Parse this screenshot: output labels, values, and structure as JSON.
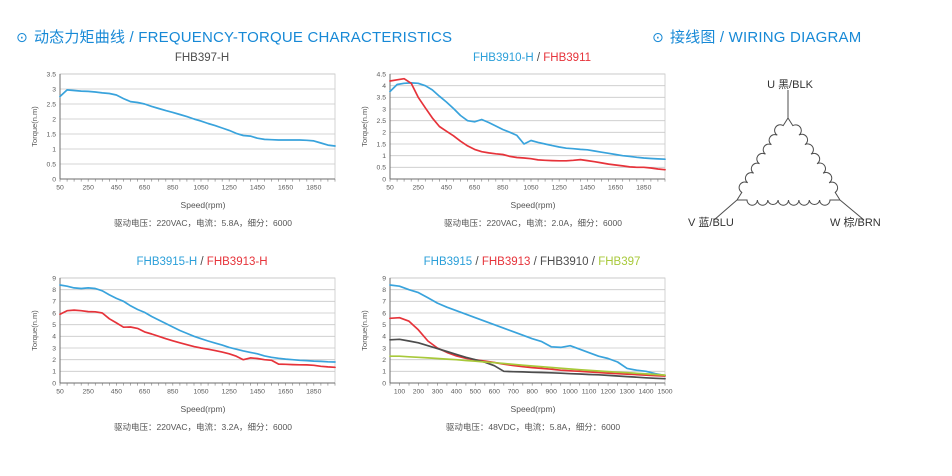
{
  "sections": {
    "charts": {
      "bullet": "⊙",
      "title": "动态力矩曲线 / FREQUENCY-TORQUE CHARACTERISTICS"
    },
    "wiring": {
      "bullet": "⊙",
      "title": "接线图 / WIRING DIAGRAM"
    }
  },
  "colors": {
    "accent_blue": "#1789d6",
    "series_blue": "#39a3dc",
    "series_red": "#e6333a",
    "series_gray": "#4d4d4d",
    "series_green": "#a8c93a"
  },
  "wiring": {
    "terminals": [
      {
        "id": "U",
        "label": "U 黑/BLK"
      },
      {
        "id": "V",
        "label": "V 蓝/BLU"
      },
      {
        "id": "W",
        "label": "W 棕/BRN"
      }
    ]
  },
  "chart_data": [
    {
      "type": "line",
      "title_parts": [
        {
          "text": "FHB397-H",
          "color": "#4d4d4d"
        }
      ],
      "xlabel": "Speed(rpm)",
      "ylabel": "Torque(n.m)",
      "caption": "驱动电压：220VAC，电流：5.8A，细分：6000",
      "xlim": [
        50,
        2000
      ],
      "ylim": [
        0,
        3.5
      ],
      "ytick_step": 0.5,
      "xtick_minor_step": 50,
      "xtick_major": [
        50,
        250,
        450,
        650,
        850,
        1050,
        1250,
        1450,
        1650,
        1850
      ],
      "series": [
        {
          "name": "FHB397-H",
          "color": "#39a3dc",
          "x": [
            50,
            100,
            150,
            200,
            250,
            300,
            350,
            400,
            450,
            500,
            550,
            600,
            650,
            700,
            750,
            800,
            850,
            900,
            950,
            1000,
            1050,
            1100,
            1150,
            1200,
            1250,
            1300,
            1350,
            1400,
            1450,
            1500,
            1550,
            1600,
            1650,
            1700,
            1750,
            1800,
            1850,
            1900,
            1950,
            2000
          ],
          "y": [
            2.75,
            2.97,
            2.95,
            2.93,
            2.92,
            2.9,
            2.87,
            2.85,
            2.8,
            2.68,
            2.58,
            2.55,
            2.5,
            2.42,
            2.35,
            2.28,
            2.22,
            2.15,
            2.08,
            2.0,
            1.93,
            1.85,
            1.78,
            1.7,
            1.62,
            1.52,
            1.45,
            1.43,
            1.36,
            1.32,
            1.31,
            1.3,
            1.3,
            1.3,
            1.3,
            1.29,
            1.27,
            1.2,
            1.13,
            1.1
          ]
        }
      ]
    },
    {
      "type": "line",
      "title_parts": [
        {
          "text": "FHB3910-H",
          "color": "#2b9fd9"
        },
        {
          "text": "FHB3911",
          "color": "#e6333a"
        }
      ],
      "xlabel": "Speed(rpm)",
      "ylabel": "Torque(n.m)",
      "caption": "驱动电压：220VAC，电流：2.0A，细分：6000",
      "xlim": [
        50,
        2000
      ],
      "ylim": [
        0,
        4.5
      ],
      "ytick_step": 0.5,
      "xtick_minor_step": 50,
      "xtick_major": [
        50,
        250,
        450,
        650,
        850,
        1050,
        1250,
        1450,
        1650,
        1850
      ],
      "series": [
        {
          "name": "FHB3910-H",
          "color": "#39a3dc",
          "x": [
            50,
            100,
            150,
            200,
            250,
            300,
            350,
            400,
            450,
            500,
            550,
            600,
            650,
            700,
            750,
            800,
            850,
            900,
            950,
            1000,
            1050,
            1100,
            1150,
            1200,
            1250,
            1300,
            1350,
            1400,
            1450,
            1500,
            1550,
            1600,
            1650,
            1700,
            1750,
            1800,
            1850,
            1900,
            1950,
            2000
          ],
          "y": [
            3.75,
            4.05,
            4.1,
            4.12,
            4.1,
            4.0,
            3.82,
            3.55,
            3.3,
            3.02,
            2.72,
            2.5,
            2.45,
            2.55,
            2.42,
            2.27,
            2.12,
            2.0,
            1.87,
            1.5,
            1.65,
            1.57,
            1.5,
            1.43,
            1.37,
            1.32,
            1.3,
            1.27,
            1.25,
            1.2,
            1.15,
            1.1,
            1.05,
            1.0,
            0.97,
            0.93,
            0.9,
            0.88,
            0.86,
            0.85
          ]
        },
        {
          "name": "FHB3911",
          "color": "#e6333a",
          "x": [
            50,
            100,
            150,
            200,
            250,
            300,
            350,
            400,
            450,
            500,
            550,
            600,
            650,
            700,
            750,
            800,
            850,
            900,
            950,
            1000,
            1050,
            1100,
            1150,
            1200,
            1250,
            1300,
            1350,
            1400,
            1450,
            1500,
            1550,
            1600,
            1650,
            1700,
            1750,
            1800,
            1850,
            1900,
            1950,
            2000
          ],
          "y": [
            4.2,
            4.25,
            4.3,
            4.1,
            3.5,
            3.05,
            2.62,
            2.25,
            2.05,
            1.85,
            1.62,
            1.42,
            1.27,
            1.17,
            1.12,
            1.08,
            1.05,
            0.97,
            0.92,
            0.9,
            0.87,
            0.82,
            0.8,
            0.79,
            0.78,
            0.78,
            0.8,
            0.83,
            0.79,
            0.74,
            0.69,
            0.64,
            0.6,
            0.56,
            0.52,
            0.5,
            0.5,
            0.47,
            0.43,
            0.4
          ]
        }
      ]
    },
    {
      "type": "line",
      "title_parts": [
        {
          "text": "FHB3915-H",
          "color": "#2b9fd9"
        },
        {
          "text": "FHB3913-H",
          "color": "#e6333a"
        }
      ],
      "xlabel": "Speed(rpm)",
      "ylabel": "Torque(n.m)",
      "caption": "驱动电压：220VAC，电流：3.2A，细分：6000",
      "xlim": [
        50,
        2000
      ],
      "ylim": [
        0,
        9
      ],
      "ytick_step": 1,
      "xtick_minor_step": 50,
      "xtick_major": [
        50,
        250,
        450,
        650,
        850,
        1050,
        1250,
        1450,
        1650,
        1850
      ],
      "series": [
        {
          "name": "FHB3915-H",
          "color": "#39a3dc",
          "x": [
            50,
            100,
            150,
            200,
            250,
            300,
            350,
            400,
            450,
            500,
            550,
            600,
            650,
            700,
            750,
            800,
            850,
            900,
            950,
            1000,
            1050,
            1100,
            1150,
            1200,
            1250,
            1300,
            1350,
            1400,
            1450,
            1500,
            1550,
            1600,
            1650,
            1700,
            1750,
            1800,
            1850,
            1900,
            1950,
            2000
          ],
          "y": [
            8.4,
            8.3,
            8.15,
            8.1,
            8.15,
            8.1,
            7.9,
            7.55,
            7.25,
            7.0,
            6.62,
            6.3,
            6.05,
            5.7,
            5.4,
            5.1,
            4.8,
            4.5,
            4.25,
            4.0,
            3.8,
            3.6,
            3.42,
            3.25,
            3.05,
            2.9,
            2.75,
            2.62,
            2.5,
            2.32,
            2.2,
            2.12,
            2.05,
            2.0,
            1.95,
            1.92,
            1.88,
            1.85,
            1.82,
            1.8
          ]
        },
        {
          "name": "FHB3913-H",
          "color": "#e6333a",
          "x": [
            50,
            100,
            150,
            200,
            250,
            300,
            350,
            400,
            450,
            500,
            550,
            600,
            650,
            700,
            750,
            800,
            850,
            900,
            950,
            1000,
            1050,
            1100,
            1150,
            1200,
            1250,
            1300,
            1350,
            1400,
            1450,
            1500,
            1550,
            1600,
            1650,
            1700,
            1750,
            1800,
            1850,
            1900,
            1950,
            2000
          ],
          "y": [
            5.9,
            6.2,
            6.25,
            6.2,
            6.12,
            6.1,
            6.0,
            5.5,
            5.15,
            4.78,
            4.8,
            4.68,
            4.38,
            4.2,
            4.0,
            3.8,
            3.62,
            3.45,
            3.28,
            3.12,
            3.0,
            2.9,
            2.78,
            2.65,
            2.5,
            2.3,
            2.0,
            2.15,
            2.1,
            2.0,
            1.95,
            1.62,
            1.6,
            1.58,
            1.56,
            1.55,
            1.52,
            1.43,
            1.38,
            1.35
          ]
        }
      ]
    },
    {
      "type": "line",
      "title_parts": [
        {
          "text": "FHB3915",
          "color": "#2b9fd9"
        },
        {
          "text": "FHB3913",
          "color": "#e6333a"
        },
        {
          "text": "FHB3910",
          "color": "#4d4d4d"
        },
        {
          "text": "FHB397",
          "color": "#a8c93a"
        }
      ],
      "xlabel": "Speed(rpm)",
      "ylabel": "Torque(n.m)",
      "caption": "驱动电压：48VDC，电流：5.8A，细分：6000",
      "xlim": [
        50,
        1500
      ],
      "ylim": [
        0,
        9
      ],
      "ytick_step": 1,
      "xtick_minor_step": 50,
      "xtick_major": [
        100,
        200,
        300,
        400,
        500,
        600,
        700,
        800,
        900,
        1000,
        1100,
        1200,
        1300,
        1400,
        1500
      ],
      "series": [
        {
          "name": "FHB3915",
          "color": "#39a3dc",
          "x": [
            50,
            100,
            150,
            200,
            250,
            300,
            350,
            400,
            450,
            500,
            550,
            600,
            650,
            700,
            750,
            800,
            850,
            900,
            950,
            1000,
            1050,
            1100,
            1150,
            1200,
            1250,
            1300,
            1350,
            1400,
            1450,
            1500
          ],
          "y": [
            8.4,
            8.3,
            8.0,
            7.75,
            7.3,
            6.85,
            6.5,
            6.2,
            5.9,
            5.6,
            5.3,
            5.0,
            4.7,
            4.4,
            4.1,
            3.8,
            3.55,
            3.1,
            3.05,
            3.2,
            2.9,
            2.6,
            2.3,
            2.1,
            1.8,
            1.25,
            1.1,
            1.0,
            0.8,
            0.65
          ]
        },
        {
          "name": "FHB3913",
          "color": "#e6333a",
          "x": [
            50,
            100,
            150,
            200,
            250,
            300,
            350,
            400,
            450,
            500,
            550,
            600,
            650,
            700,
            750,
            800,
            850,
            900,
            950,
            1000,
            1050,
            1100,
            1150,
            1200,
            1250,
            1300,
            1350,
            1400,
            1450,
            1500
          ],
          "y": [
            5.55,
            5.6,
            5.3,
            4.55,
            3.6,
            3.0,
            2.62,
            2.32,
            2.12,
            1.98,
            1.88,
            1.76,
            1.62,
            1.5,
            1.4,
            1.32,
            1.25,
            1.18,
            1.1,
            1.05,
            1.0,
            0.95,
            0.9,
            0.85,
            0.8,
            0.76,
            0.72,
            0.68,
            0.63,
            0.6
          ]
        },
        {
          "name": "FHB3910",
          "color": "#4d4d4d",
          "x": [
            50,
            100,
            150,
            200,
            250,
            300,
            350,
            400,
            450,
            500,
            550,
            600,
            650,
            700,
            750,
            800,
            850,
            900,
            950,
            1000,
            1050,
            1100,
            1150,
            1200,
            1250,
            1300,
            1350,
            1400,
            1450,
            1500
          ],
          "y": [
            3.7,
            3.75,
            3.6,
            3.45,
            3.2,
            2.95,
            2.7,
            2.45,
            2.2,
            2.0,
            1.78,
            1.48,
            1.0,
            0.97,
            0.95,
            0.92,
            0.9,
            0.87,
            0.84,
            0.8,
            0.77,
            0.73,
            0.7,
            0.65,
            0.6,
            0.55,
            0.5,
            0.45,
            0.4,
            0.37
          ]
        },
        {
          "name": "FHB397",
          "color": "#a8c93a",
          "x": [
            50,
            100,
            150,
            200,
            250,
            300,
            350,
            400,
            450,
            500,
            550,
            600,
            650,
            700,
            750,
            800,
            850,
            900,
            950,
            1000,
            1050,
            1100,
            1150,
            1200,
            1250,
            1300,
            1350,
            1400,
            1450,
            1500
          ],
          "y": [
            2.3,
            2.3,
            2.25,
            2.2,
            2.15,
            2.1,
            2.05,
            2.0,
            1.93,
            1.87,
            1.8,
            1.74,
            1.67,
            1.6,
            1.53,
            1.46,
            1.4,
            1.33,
            1.27,
            1.2,
            1.14,
            1.08,
            1.03,
            0.98,
            0.93,
            0.88,
            0.83,
            0.78,
            0.73,
            0.68
          ]
        }
      ]
    }
  ]
}
